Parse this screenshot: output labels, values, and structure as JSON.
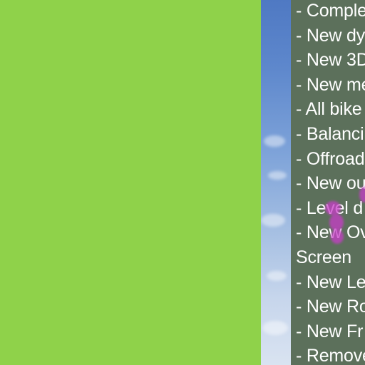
{
  "colors": {
    "green_panel": "#8fd24a",
    "sky_top": "#4f79c3",
    "sky_bottom": "#d9e3f1",
    "text_panel": "#58685c",
    "text": "#ffffff",
    "blob": "#c83cc8"
  },
  "changelog": {
    "items": [
      "- Comple",
      "- New dy",
      "- New 3D",
      "- New me",
      "- All bike",
      "- Balanci",
      "- Offroad",
      "- New ou",
      "- Level d",
      "- New Ov",
      "Screen",
      "- New Le",
      "- New Ro",
      "- New Fr",
      "- Remove"
    ]
  }
}
